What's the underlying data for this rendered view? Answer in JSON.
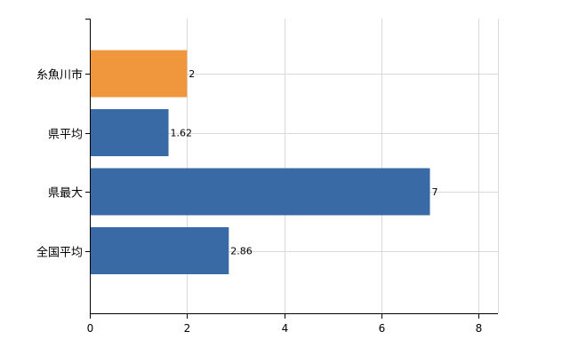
{
  "chart_data": {
    "type": "bar",
    "orientation": "horizontal",
    "categories": [
      "糸魚川市",
      "県平均",
      "県最大",
      "全国平均"
    ],
    "values": [
      2,
      1.62,
      7,
      2.86
    ],
    "value_labels": [
      "2",
      "1.62",
      "7",
      "2.86"
    ],
    "colors": [
      "#f0963c",
      "#3a6aa5",
      "#3a6aa5",
      "#3a6aa5"
    ],
    "xlim": [
      0,
      8.4
    ],
    "x_ticks": [
      0,
      2,
      4,
      6,
      8
    ],
    "x_tick_labels": [
      "0",
      "2",
      "4",
      "6",
      "8"
    ],
    "title": "",
    "xlabel": "",
    "ylabel": "",
    "grid": true,
    "legend": "none"
  }
}
